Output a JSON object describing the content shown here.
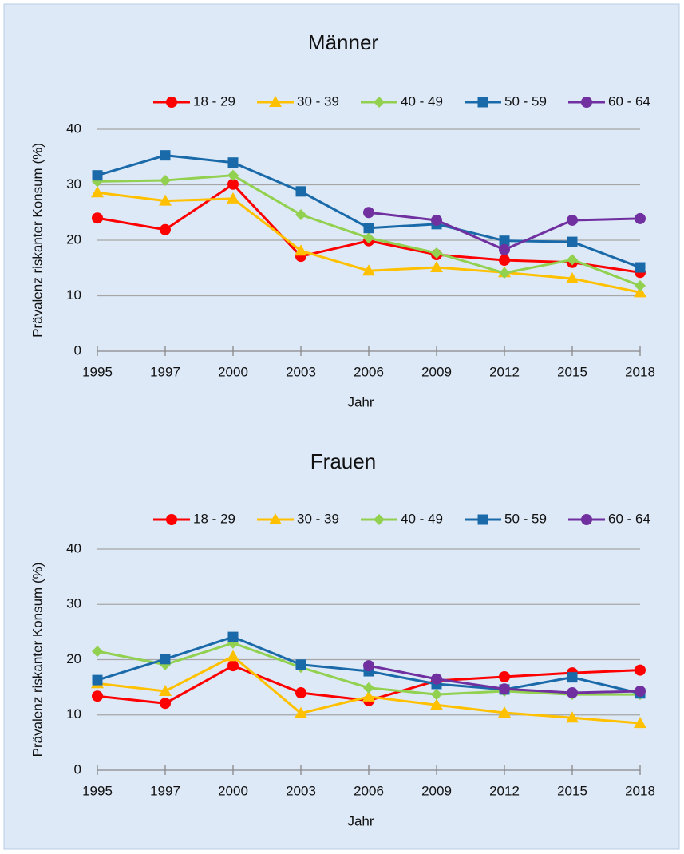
{
  "chart_data": [
    {
      "type": "line",
      "title": "Männer",
      "xlabel": "Jahr",
      "ylabel": "Prävalenz riskanter Konsum (%)",
      "categories": [
        "1995",
        "1997",
        "2000",
        "2003",
        "2006",
        "2009",
        "2012",
        "2015",
        "2018"
      ],
      "series": [
        {
          "name": "18 - 29",
          "color": "#ff0000",
          "marker": "circle",
          "values": [
            24.0,
            21.9,
            30.1,
            17.1,
            19.9,
            17.4,
            16.4,
            16.0,
            14.2
          ]
        },
        {
          "name": "30 - 39",
          "color": "#ffc000",
          "marker": "triangle",
          "values": [
            28.6,
            27.1,
            27.5,
            18.1,
            14.5,
            15.1,
            14.2,
            13.1,
            10.6
          ]
        },
        {
          "name": "40 - 49",
          "color": "#92d050",
          "marker": "diamond",
          "values": [
            30.6,
            30.8,
            31.7,
            24.6,
            20.4,
            17.7,
            14.1,
            16.5,
            11.8
          ]
        },
        {
          "name": "50 - 59",
          "color": "#1a6aaa",
          "marker": "square",
          "values": [
            31.7,
            35.3,
            34.0,
            28.8,
            22.2,
            22.9,
            19.9,
            19.7,
            15.1
          ]
        },
        {
          "name": "60 - 64",
          "color": "#7030a0",
          "marker": "circle",
          "values": [
            null,
            null,
            null,
            null,
            25.0,
            23.6,
            18.3,
            23.6,
            23.9
          ]
        }
      ],
      "ylim": [
        0,
        40
      ],
      "yticks": [
        0,
        10,
        20,
        30,
        40
      ],
      "grid": true,
      "legend": "top"
    },
    {
      "type": "line",
      "title": "Frauen",
      "xlabel": "Jahr",
      "ylabel": "Prävalenz riskanter Konsum (%)",
      "categories": [
        "1995",
        "1997",
        "2000",
        "2003",
        "2006",
        "2009",
        "2012",
        "2015",
        "2018"
      ],
      "series": [
        {
          "name": "18 - 29",
          "color": "#ff0000",
          "marker": "circle",
          "values": [
            13.4,
            12.1,
            18.9,
            14.0,
            12.6,
            16.2,
            16.9,
            17.6,
            18.1
          ]
        },
        {
          "name": "30 - 39",
          "color": "#ffc000",
          "marker": "triangle",
          "values": [
            15.7,
            14.3,
            20.6,
            10.3,
            13.3,
            11.8,
            10.4,
            9.5,
            8.5
          ]
        },
        {
          "name": "40 - 49",
          "color": "#92d050",
          "marker": "diamond",
          "values": [
            21.5,
            19.1,
            23.0,
            18.6,
            14.9,
            13.7,
            14.3,
            13.7,
            13.7
          ]
        },
        {
          "name": "50 - 59",
          "color": "#1a6aaa",
          "marker": "square",
          "values": [
            16.3,
            20.1,
            24.1,
            19.1,
            17.9,
            15.6,
            14.6,
            16.8,
            13.9
          ]
        },
        {
          "name": "60 - 64",
          "color": "#7030a0",
          "marker": "circle",
          "values": [
            null,
            null,
            null,
            null,
            18.9,
            16.5,
            14.7,
            14.0,
            14.3
          ]
        }
      ],
      "ylim": [
        0,
        40
      ],
      "yticks": [
        0,
        10,
        20,
        30,
        40
      ],
      "grid": true,
      "legend": "top"
    }
  ]
}
